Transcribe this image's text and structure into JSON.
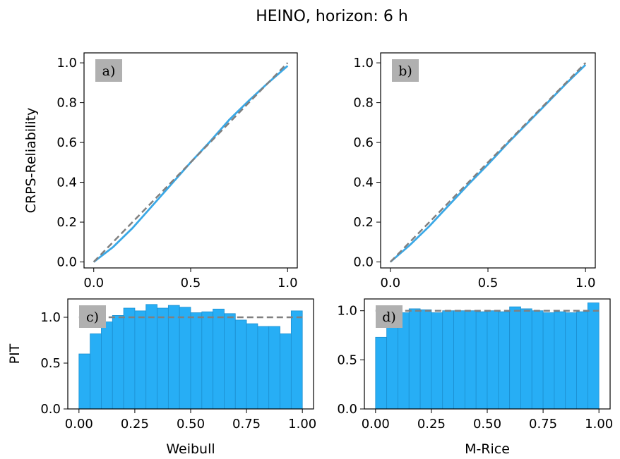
{
  "figure": {
    "title": "HEINO, horizon: 6 h",
    "colors": {
      "curve": "#3aa8e6",
      "bar": "#27aef5",
      "bar_edge": "#1c8fd0",
      "reference": "#808080",
      "tag_bg": "#b0b0b0"
    }
  },
  "chart_data": [
    {
      "type": "line",
      "panel": "a)",
      "ylabel": "CRPS-Reliability",
      "xlabel": "",
      "xlim": [
        -0.05,
        1.05
      ],
      "ylim": [
        -0.03,
        1.05
      ],
      "xticks": [
        "0.0",
        "0.5",
        "1.0"
      ],
      "yticks": [
        "0.0",
        "0.2",
        "0.4",
        "0.6",
        "0.8",
        "1.0"
      ],
      "series": [
        {
          "style": "solid",
          "x": [
            0,
            0.1,
            0.2,
            0.3,
            0.4,
            0.5,
            0.6,
            0.7,
            0.8,
            0.9,
            1.0
          ],
          "y": [
            0,
            0.075,
            0.17,
            0.28,
            0.39,
            0.5,
            0.605,
            0.715,
            0.81,
            0.9,
            0.985
          ]
        },
        {
          "style": "dashed",
          "x": [
            0,
            1
          ],
          "y": [
            0,
            1
          ]
        }
      ]
    },
    {
      "type": "line",
      "panel": "b)",
      "ylabel": "",
      "xlabel": "",
      "xlim": [
        -0.05,
        1.05
      ],
      "ylim": [
        -0.03,
        1.05
      ],
      "xticks": [
        "0.0",
        "0.5",
        "1.0"
      ],
      "yticks": [
        "0.0",
        "0.2",
        "0.4",
        "0.6",
        "0.8",
        "1.0"
      ],
      "series": [
        {
          "style": "solid",
          "x": [
            0,
            0.1,
            0.2,
            0.3,
            0.4,
            0.5,
            0.6,
            0.7,
            0.8,
            0.9,
            1.0
          ],
          "y": [
            0,
            0.085,
            0.18,
            0.285,
            0.39,
            0.49,
            0.595,
            0.695,
            0.795,
            0.895,
            0.99
          ]
        },
        {
          "style": "dashed",
          "x": [
            0,
            1
          ],
          "y": [
            0,
            1
          ]
        }
      ]
    },
    {
      "type": "bar",
      "panel": "c)",
      "ylabel": "PIT",
      "xlabel": "Weibull",
      "xlim": [
        -0.05,
        1.05
      ],
      "ylim": [
        0,
        1.2
      ],
      "xticks": [
        "0.00",
        "0.25",
        "0.50",
        "0.75",
        "1.00"
      ],
      "yticks": [
        "0.0",
        "0.5",
        "1.0"
      ],
      "bin_width": 0.05,
      "values": [
        0.6,
        0.82,
        0.95,
        1.02,
        1.1,
        1.07,
        1.14,
        1.1,
        1.13,
        1.11,
        1.05,
        1.06,
        1.09,
        1.04,
        0.97,
        0.93,
        0.9,
        0.9,
        0.82,
        1.07
      ],
      "reference": 1.0
    },
    {
      "type": "bar",
      "panel": "d)",
      "ylabel": "",
      "xlabel": "M-Rice",
      "xlim": [
        -0.05,
        1.05
      ],
      "ylim": [
        0,
        1.12
      ],
      "xticks": [
        "0.00",
        "0.25",
        "0.50",
        "0.75",
        "1.00"
      ],
      "yticks": [
        "0.0",
        "0.5",
        "1.0"
      ],
      "bin_width": 0.05,
      "values": [
        0.73,
        0.84,
        0.98,
        1.02,
        1.01,
        0.98,
        1.0,
        1.0,
        1.0,
        0.99,
        1.0,
        0.99,
        1.04,
        1.02,
        1.0,
        0.98,
        0.99,
        0.98,
        0.99,
        1.08
      ],
      "reference": 1.0
    }
  ]
}
